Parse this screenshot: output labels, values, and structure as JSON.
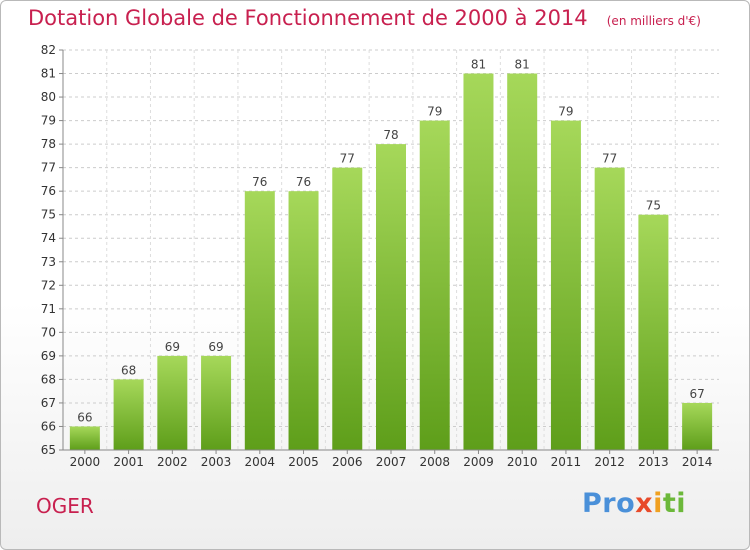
{
  "header": {
    "title": "Dotation Globale de Fonctionnement de 2000 à 2014",
    "unit": "(en milliers d'€)"
  },
  "footer": {
    "city": "OGER",
    "brand": "Proxiti"
  },
  "colors": {
    "title": "#c8204f",
    "bar_light": "#a6d85a",
    "bar_dark": "#5e9e1a",
    "grid": "#cccccc"
  },
  "chart_data": {
    "type": "bar",
    "title": "Dotation Globale de Fonctionnement de 2000 à 2014",
    "subtitle": "(en milliers d'€)",
    "xlabel": "",
    "ylabel": "",
    "ylim": [
      65,
      82
    ],
    "grid": true,
    "categories": [
      "2000",
      "2001",
      "2002",
      "2003",
      "2004",
      "2005",
      "2006",
      "2007",
      "2008",
      "2009",
      "2010",
      "2011",
      "2012",
      "2013",
      "2014"
    ],
    "values": [
      66,
      68,
      69,
      69,
      76,
      76,
      77,
      78,
      79,
      81,
      81,
      79,
      77,
      75,
      67
    ]
  }
}
